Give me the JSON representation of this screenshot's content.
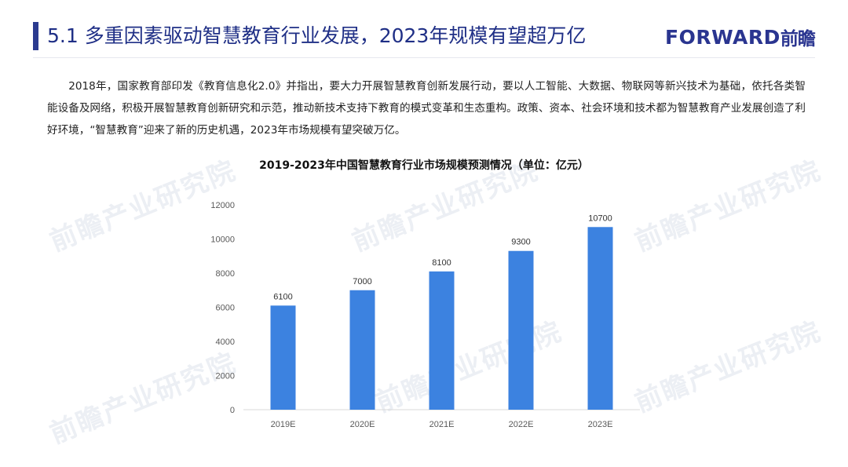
{
  "header": {
    "title": "5.1 多重因素驱动智慧教育行业发展，2023年规模有望超万亿",
    "logo_latin": "FORWARD",
    "logo_cjk": "前瞻",
    "colors": {
      "title": "#1f2f86",
      "accent_bar": "#2b3a8f"
    }
  },
  "body": {
    "paragraph": "2018年，国家教育部印发《教育信息化2.0》并指出，要大力开展智慧教育创新发展行动，要以人工智能、大数据、物联网等新兴技术为基础，依托各类智能设备及网络，积极开展智慧教育创新研究和示范，推动新技术支持下教育的模式变革和生态重构。政策、资本、社会环境和技术都为智慧教育产业发展创造了利好环境，“智慧教育”迎来了新的历史机遇，2023年市场规模有望突破万亿。"
  },
  "watermark": {
    "text": "前瞻产业研究院"
  },
  "chart_data": {
    "type": "bar",
    "title": "2019-2023年中国智慧教育行业市场规模预测情况（单位：亿元）",
    "categories": [
      "2019E",
      "2020E",
      "2021E",
      "2022E",
      "2023E"
    ],
    "values": [
      6100,
      7000,
      8100,
      9300,
      10700
    ],
    "data_labels": [
      "6100",
      "7000",
      "8100",
      "9300",
      "10700"
    ],
    "ylim": [
      0,
      12000
    ],
    "yticks": [
      "0",
      "2000",
      "4000",
      "6000",
      "8000",
      "10000",
      "12000"
    ],
    "xlabel": "",
    "ylabel": "",
    "grid": false,
    "legend": "none",
    "bar_color": "#3c82e0"
  }
}
